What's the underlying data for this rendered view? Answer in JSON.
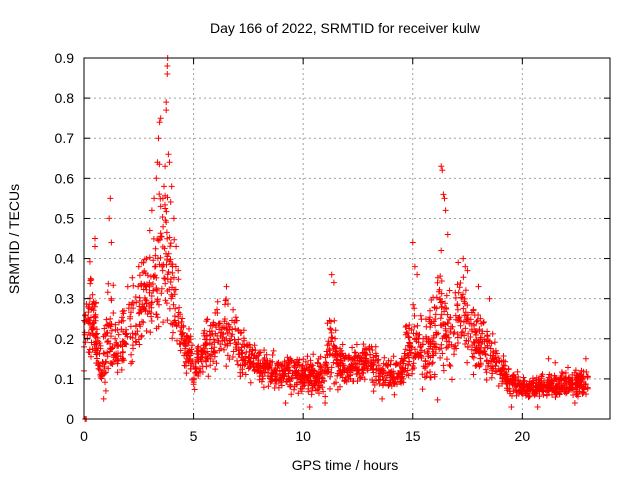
{
  "chart_data": {
    "type": "scatter",
    "title": "Day 166 of 2022, SRMTID for receiver kulw",
    "xlabel": "GPS time / hours",
    "ylabel": "SRMTID / TECUs",
    "xlim": [
      0,
      24
    ],
    "ylim": [
      0,
      0.9
    ],
    "xticks": [
      0,
      5,
      10,
      15,
      20
    ],
    "yticks": [
      0,
      0.1,
      0.2,
      0.3,
      0.4,
      0.5,
      0.6,
      0.7,
      0.8,
      0.9
    ],
    "grid": true,
    "marker": "+",
    "color": "#ff0000",
    "x_max_data": 23,
    "envelope_x": [
      0.0,
      0.3,
      0.5,
      0.7,
      0.8,
      1.0,
      1.2,
      1.5,
      2.0,
      2.5,
      3.0,
      3.2,
      3.5,
      3.7,
      3.8,
      4.0,
      4.3,
      4.5,
      4.8,
      5.0,
      5.5,
      6.0,
      6.5,
      7.0,
      7.5,
      8.0,
      9.0,
      10.0,
      11.0,
      11.3,
      11.5,
      12.0,
      13.0,
      13.5,
      14.0,
      14.5,
      15.0,
      15.5,
      16.0,
      16.3,
      16.5,
      16.8,
      17.0,
      17.2,
      17.5,
      18.0,
      18.5,
      19.0,
      19.5,
      20.0,
      21.0,
      22.0,
      23.0
    ],
    "envelope_mid": [
      0.2,
      0.28,
      0.22,
      0.18,
      0.1,
      0.18,
      0.22,
      0.18,
      0.22,
      0.27,
      0.3,
      0.36,
      0.4,
      0.45,
      0.42,
      0.33,
      0.25,
      0.2,
      0.16,
      0.12,
      0.17,
      0.2,
      0.22,
      0.19,
      0.15,
      0.13,
      0.12,
      0.11,
      0.11,
      0.2,
      0.14,
      0.13,
      0.14,
      0.12,
      0.11,
      0.12,
      0.2,
      0.17,
      0.2,
      0.28,
      0.22,
      0.2,
      0.24,
      0.26,
      0.24,
      0.2,
      0.16,
      0.12,
      0.09,
      0.08,
      0.08,
      0.09,
      0.09
    ],
    "envelope_spread": [
      0.08,
      0.12,
      0.1,
      0.09,
      0.06,
      0.12,
      0.14,
      0.1,
      0.1,
      0.13,
      0.15,
      0.17,
      0.22,
      0.28,
      0.24,
      0.17,
      0.12,
      0.09,
      0.07,
      0.06,
      0.08,
      0.09,
      0.1,
      0.09,
      0.06,
      0.05,
      0.05,
      0.05,
      0.06,
      0.12,
      0.07,
      0.05,
      0.06,
      0.05,
      0.05,
      0.06,
      0.14,
      0.1,
      0.14,
      0.2,
      0.14,
      0.11,
      0.13,
      0.14,
      0.13,
      0.1,
      0.08,
      0.05,
      0.04,
      0.03,
      0.03,
      0.04,
      0.04
    ],
    "points_count": 2200,
    "peaks": [
      [
        0.0,
        0.12
      ],
      [
        0.05,
        0.0
      ],
      [
        0.1,
        0.0
      ],
      [
        0.3,
        0.35
      ],
      [
        0.5,
        0.43
      ],
      [
        0.5,
        0.45
      ],
      [
        0.9,
        0.05
      ],
      [
        1.0,
        0.07
      ],
      [
        1.15,
        0.5
      ],
      [
        1.2,
        0.55
      ],
      [
        1.25,
        0.44
      ],
      [
        2.0,
        0.33
      ],
      [
        2.5,
        0.38
      ],
      [
        3.0,
        0.47
      ],
      [
        3.1,
        0.52
      ],
      [
        3.2,
        0.55
      ],
      [
        3.3,
        0.6
      ],
      [
        3.35,
        0.64
      ],
      [
        3.4,
        0.7
      ],
      [
        3.45,
        0.74
      ],
      [
        3.5,
        0.75
      ],
      [
        3.5,
        0.53
      ],
      [
        3.6,
        0.55
      ],
      [
        3.65,
        0.58
      ],
      [
        3.7,
        0.63
      ],
      [
        3.75,
        0.77
      ],
      [
        3.75,
        0.79
      ],
      [
        3.8,
        0.86
      ],
      [
        3.8,
        0.88
      ],
      [
        3.82,
        0.9
      ],
      [
        3.85,
        0.66
      ],
      [
        3.9,
        0.64
      ],
      [
        4.0,
        0.58
      ],
      [
        4.1,
        0.5
      ],
      [
        4.2,
        0.43
      ],
      [
        4.3,
        0.37
      ],
      [
        6.5,
        0.33
      ],
      [
        11.3,
        0.36
      ],
      [
        11.4,
        0.34
      ],
      [
        15.0,
        0.44
      ],
      [
        15.1,
        0.38
      ],
      [
        15.2,
        0.36
      ],
      [
        16.3,
        0.63
      ],
      [
        16.35,
        0.62
      ],
      [
        16.4,
        0.56
      ],
      [
        16.45,
        0.55
      ],
      [
        16.5,
        0.52
      ],
      [
        16.6,
        0.46
      ],
      [
        16.3,
        0.42
      ],
      [
        17.3,
        0.4
      ],
      [
        17.4,
        0.38
      ],
      [
        17.5,
        0.37
      ],
      [
        18.0,
        0.33
      ],
      [
        18.5,
        0.3
      ],
      [
        22.9,
        0.15
      ],
      [
        21.2,
        0.15
      ],
      [
        21.5,
        0.14
      ],
      [
        9.2,
        0.04
      ],
      [
        10.3,
        0.03
      ],
      [
        11.0,
        0.04
      ],
      [
        13.6,
        0.05
      ],
      [
        19.5,
        0.03
      ],
      [
        20.7,
        0.03
      ],
      [
        22.4,
        0.04
      ]
    ]
  }
}
